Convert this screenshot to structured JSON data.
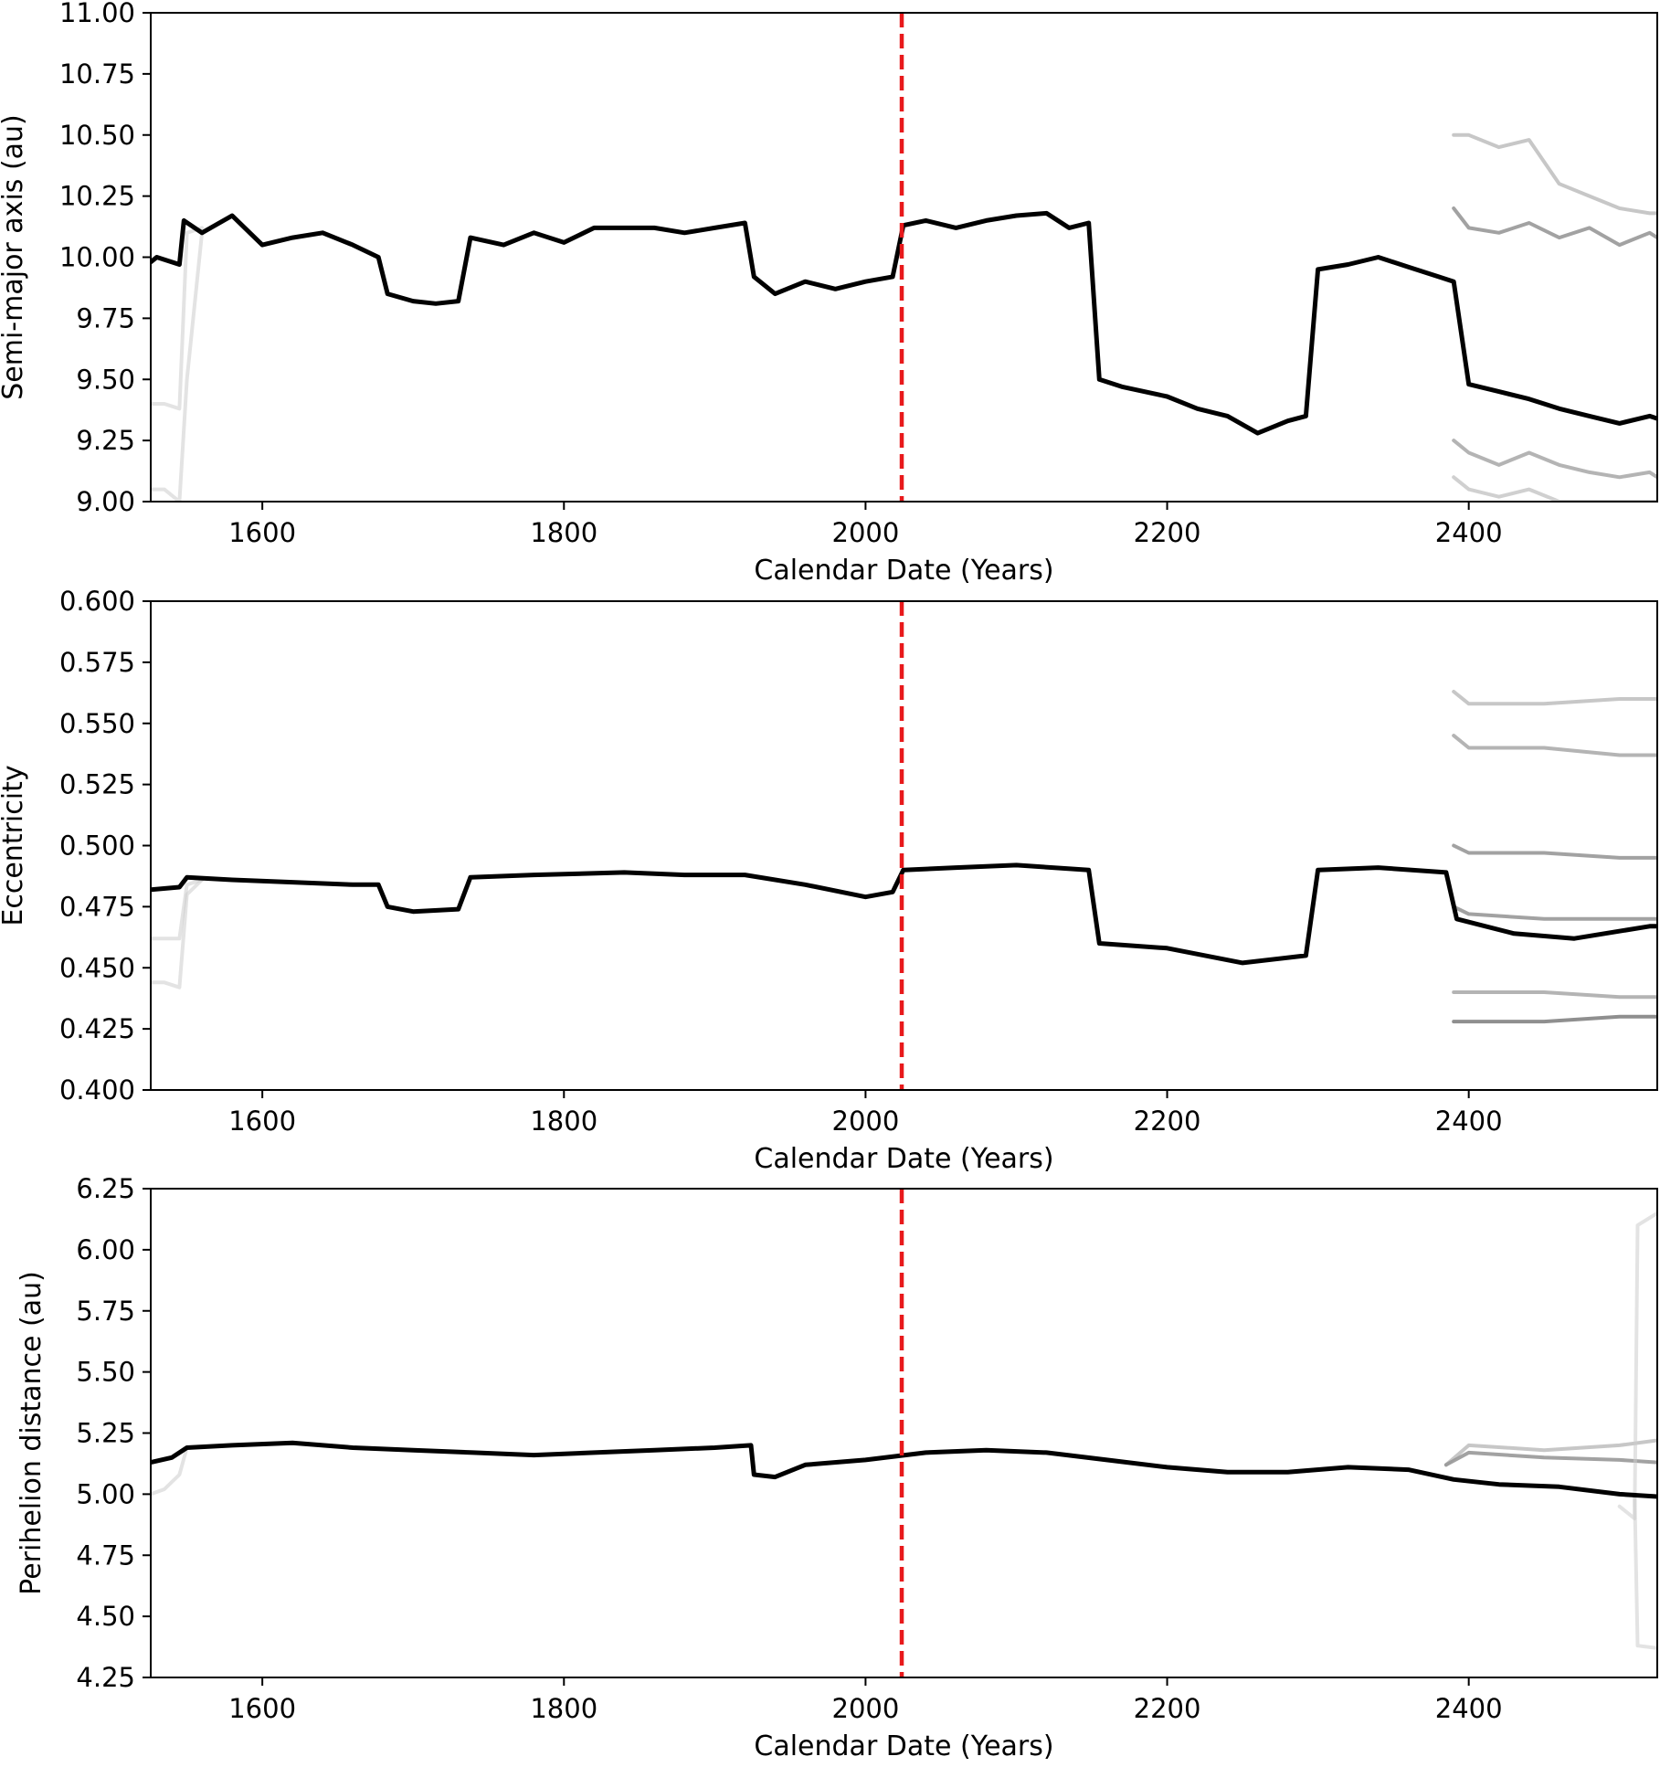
{
  "colors": {
    "marker_line": "#e8191b",
    "series_line": "#000000",
    "background": "#ffffff"
  },
  "chart_data": [
    {
      "type": "line",
      "ylabel": "Semi-major axis (au)",
      "xlabel": "Calendar Date (Years)",
      "xlim": [
        1526,
        2525
      ],
      "ylim": [
        9.0,
        11.0
      ],
      "xticks": [
        1600,
        1800,
        2000,
        2200,
        2400
      ],
      "yticks": [
        "9.00",
        "9.25",
        "9.50",
        "9.75",
        "10.00",
        "10.25",
        "10.50",
        "10.75",
        "11.00"
      ],
      "vline": {
        "x": 2024,
        "style": "dashed",
        "color": "#e8191b"
      },
      "series": [
        {
          "role": "nominal",
          "color": "#000000",
          "x": [
            1526,
            1530,
            1545,
            1548,
            1560,
            1580,
            1600,
            1620,
            1640,
            1660,
            1677,
            1683,
            1700,
            1715,
            1730,
            1738,
            1760,
            1780,
            1800,
            1820,
            1840,
            1860,
            1880,
            1900,
            1920,
            1926,
            1940,
            1960,
            1980,
            2000,
            2018,
            2025,
            2040,
            2060,
            2080,
            2100,
            2120,
            2135,
            2148,
            2155,
            2170,
            2200,
            2220,
            2240,
            2260,
            2280,
            2292,
            2300,
            2320,
            2340,
            2360,
            2380,
            2390,
            2400,
            2420,
            2440,
            2460,
            2480,
            2500,
            2520,
            2525
          ],
          "y": [
            9.98,
            10.0,
            9.97,
            10.15,
            10.1,
            10.17,
            10.05,
            10.08,
            10.1,
            10.05,
            10.0,
            9.85,
            9.82,
            9.81,
            9.82,
            10.08,
            10.05,
            10.1,
            10.06,
            10.12,
            10.12,
            10.12,
            10.1,
            10.12,
            10.14,
            9.92,
            9.85,
            9.9,
            9.87,
            9.9,
            9.92,
            10.13,
            10.15,
            10.12,
            10.15,
            10.17,
            10.18,
            10.12,
            10.14,
            9.5,
            9.47,
            9.43,
            9.38,
            9.35,
            9.28,
            9.33,
            9.35,
            9.95,
            9.97,
            10.0,
            9.96,
            9.92,
            9.9,
            9.48,
            9.45,
            9.42,
            9.38,
            9.35,
            9.32,
            9.35,
            9.34
          ]
        },
        {
          "role": "clone",
          "color": "#555555",
          "x": [
            2390,
            2400,
            2420,
            2440,
            2460,
            2480,
            2500,
            2520,
            2525
          ],
          "y": [
            10.2,
            10.12,
            10.1,
            10.14,
            10.08,
            10.12,
            10.05,
            10.1,
            10.08
          ]
        },
        {
          "role": "clone",
          "color": "#999999",
          "x": [
            2390,
            2400,
            2420,
            2440,
            2460,
            2480,
            2500,
            2520,
            2525
          ],
          "y": [
            10.5,
            10.5,
            10.45,
            10.48,
            10.3,
            10.25,
            10.2,
            10.18,
            10.18
          ]
        },
        {
          "role": "clone",
          "color": "#777777",
          "x": [
            2390,
            2400,
            2420,
            2440,
            2460,
            2480,
            2500,
            2520,
            2525
          ],
          "y": [
            9.25,
            9.2,
            9.15,
            9.2,
            9.15,
            9.12,
            9.1,
            9.12,
            9.1
          ]
        },
        {
          "role": "clone",
          "color": "#aaaaaa",
          "x": [
            2390,
            2400,
            2420,
            2440,
            2460,
            2480,
            2500,
            2520,
            2525
          ],
          "y": [
            9.1,
            9.05,
            9.02,
            9.05,
            9.0,
            9.0,
            9.0,
            9.0,
            9.0
          ]
        },
        {
          "role": "clone",
          "color": "#cccccc",
          "x": [
            1526,
            1535,
            1545,
            1550,
            1560
          ],
          "y": [
            9.4,
            9.4,
            9.38,
            10.1,
            10.12
          ]
        },
        {
          "role": "clone",
          "color": "#cccccc",
          "x": [
            1526,
            1535,
            1545,
            1550,
            1560
          ],
          "y": [
            9.05,
            9.05,
            9.0,
            9.5,
            10.1
          ]
        }
      ]
    },
    {
      "type": "line",
      "ylabel": "Eccentricity",
      "xlabel": "Calendar Date (Years)",
      "xlim": [
        1526,
        2525
      ],
      "ylim": [
        0.4,
        0.6
      ],
      "xticks": [
        1600,
        1800,
        2000,
        2200,
        2400
      ],
      "yticks": [
        "0.400",
        "0.425",
        "0.450",
        "0.475",
        "0.500",
        "0.525",
        "0.550",
        "0.575",
        "0.600"
      ],
      "vline": {
        "x": 2024,
        "style": "dashed",
        "color": "#e8191b"
      },
      "series": [
        {
          "role": "nominal",
          "color": "#000000",
          "x": [
            1526,
            1545,
            1550,
            1580,
            1620,
            1660,
            1677,
            1683,
            1700,
            1730,
            1738,
            1780,
            1840,
            1880,
            1920,
            1960,
            2000,
            2018,
            2025,
            2060,
            2100,
            2148,
            2155,
            2200,
            2250,
            2292,
            2300,
            2340,
            2385,
            2392,
            2430,
            2470,
            2520,
            2525
          ],
          "y": [
            0.482,
            0.483,
            0.487,
            0.486,
            0.485,
            0.484,
            0.484,
            0.475,
            0.473,
            0.474,
            0.487,
            0.488,
            0.489,
            0.488,
            0.488,
            0.484,
            0.479,
            0.481,
            0.49,
            0.491,
            0.492,
            0.49,
            0.46,
            0.458,
            0.452,
            0.455,
            0.49,
            0.491,
            0.489,
            0.47,
            0.464,
            0.462,
            0.467,
            0.467
          ]
        },
        {
          "role": "clone",
          "color": "#999999",
          "x": [
            2390,
            2400,
            2450,
            2500,
            2525
          ],
          "y": [
            0.563,
            0.558,
            0.558,
            0.56,
            0.56
          ]
        },
        {
          "role": "clone",
          "color": "#777777",
          "x": [
            2390,
            2400,
            2450,
            2500,
            2525
          ],
          "y": [
            0.545,
            0.54,
            0.54,
            0.537,
            0.537
          ]
        },
        {
          "role": "clone",
          "color": "#555555",
          "x": [
            2390,
            2400,
            2450,
            2500,
            2525
          ],
          "y": [
            0.5,
            0.497,
            0.497,
            0.495,
            0.495
          ]
        },
        {
          "role": "clone",
          "color": "#555555",
          "x": [
            2390,
            2400,
            2450,
            2500,
            2525
          ],
          "y": [
            0.475,
            0.472,
            0.47,
            0.47,
            0.47
          ]
        },
        {
          "role": "clone",
          "color": "#333333",
          "x": [
            2390,
            2400,
            2450,
            2500,
            2525
          ],
          "y": [
            0.428,
            0.428,
            0.428,
            0.43,
            0.43
          ]
        },
        {
          "role": "clone",
          "color": "#777777",
          "x": [
            2390,
            2400,
            2450,
            2500,
            2525
          ],
          "y": [
            0.44,
            0.44,
            0.44,
            0.438,
            0.438
          ]
        },
        {
          "role": "clone",
          "color": "#cccccc",
          "x": [
            1526,
            1535,
            1545,
            1550,
            1560
          ],
          "y": [
            0.462,
            0.462,
            0.462,
            0.484,
            0.486
          ]
        },
        {
          "role": "clone",
          "color": "#cccccc",
          "x": [
            1526,
            1535,
            1545,
            1550,
            1560
          ],
          "y": [
            0.444,
            0.444,
            0.442,
            0.48,
            0.486
          ]
        }
      ]
    },
    {
      "type": "line",
      "ylabel": "Perihelion distance (au)",
      "xlabel": "Calendar Date (Years)",
      "xlim": [
        1526,
        2525
      ],
      "ylim": [
        4.25,
        6.25
      ],
      "xticks": [
        1600,
        1800,
        2000,
        2200,
        2400
      ],
      "yticks": [
        "4.25",
        "4.50",
        "4.75",
        "5.00",
        "5.25",
        "5.50",
        "5.75",
        "6.00",
        "6.25"
      ],
      "vline": {
        "x": 2024,
        "style": "dashed",
        "color": "#e8191b"
      },
      "series": [
        {
          "role": "nominal",
          "color": "#000000",
          "x": [
            1526,
            1540,
            1550,
            1580,
            1620,
            1660,
            1700,
            1740,
            1780,
            1820,
            1860,
            1900,
            1924,
            1926,
            1940,
            1960,
            2000,
            2040,
            2080,
            2120,
            2160,
            2200,
            2240,
            2280,
            2320,
            2360,
            2390,
            2420,
            2460,
            2500,
            2525
          ],
          "y": [
            5.13,
            5.15,
            5.19,
            5.2,
            5.21,
            5.19,
            5.18,
            5.17,
            5.16,
            5.17,
            5.18,
            5.19,
            5.2,
            5.08,
            5.07,
            5.12,
            5.14,
            5.17,
            5.18,
            5.17,
            5.14,
            5.11,
            5.09,
            5.09,
            5.11,
            5.1,
            5.06,
            5.04,
            5.03,
            5.0,
            4.99
          ]
        },
        {
          "role": "clone",
          "color": "#555555",
          "x": [
            2385,
            2400,
            2450,
            2500,
            2525
          ],
          "y": [
            5.12,
            5.17,
            5.15,
            5.14,
            5.13
          ]
        },
        {
          "role": "clone",
          "color": "#999999",
          "x": [
            2385,
            2400,
            2450,
            2500,
            2525
          ],
          "y": [
            5.12,
            5.2,
            5.18,
            5.2,
            5.22
          ]
        },
        {
          "role": "clone",
          "color": "#cccccc",
          "x": [
            2500,
            2510,
            2512,
            2525
          ],
          "y": [
            4.95,
            4.9,
            6.1,
            6.15
          ]
        },
        {
          "role": "clone",
          "color": "#cccccc",
          "x": [
            2500,
            2510,
            2512,
            2525
          ],
          "y": [
            5.0,
            5.0,
            4.38,
            4.37
          ]
        },
        {
          "role": "clone",
          "color": "#cccccc",
          "x": [
            1526,
            1535,
            1545,
            1550
          ],
          "y": [
            5.0,
            5.02,
            5.08,
            5.19
          ]
        }
      ]
    }
  ]
}
